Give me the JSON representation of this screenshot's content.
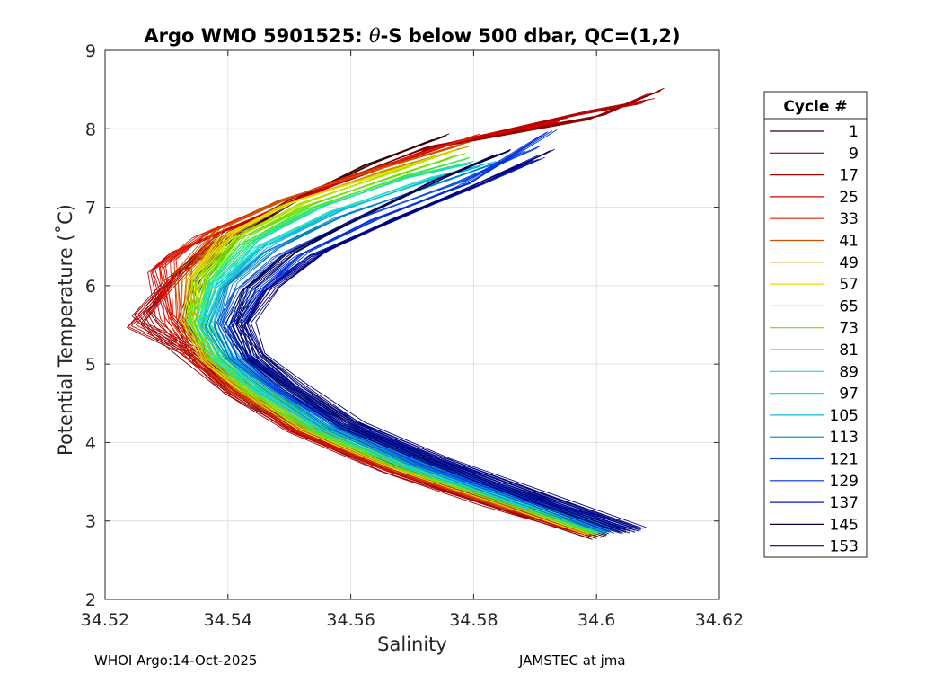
{
  "chart_data": {
    "type": "line",
    "title_prefix": "Argo WMO 5901525: ",
    "title_symbol": "θ",
    "title_suffix": "-S below 500 dbar,  QC=(1,2)",
    "xlabel": "Salinity",
    "ylabel": "Potential Temperature (˚C)",
    "xlim": [
      34.52,
      34.62
    ],
    "ylim": [
      2,
      9
    ],
    "xticks": [
      34.52,
      34.54,
      34.56,
      34.58,
      34.6,
      34.62
    ],
    "xtick_labels": [
      "34.52",
      "34.54",
      "34.56",
      "34.58",
      "34.6",
      "34.62"
    ],
    "yticks": [
      2,
      3,
      4,
      5,
      6,
      7,
      8,
      9
    ],
    "ytick_labels": [
      "2",
      "3",
      "4",
      "5",
      "6",
      "7",
      "8",
      "9"
    ],
    "grid": true,
    "legend_title": "Cycle #",
    "legend_position": "right-outside",
    "series": [
      {
        "name": "1",
        "color": "#3a0000",
        "points": [
          [
            34.601,
            2.8
          ],
          [
            34.585,
            3.2
          ],
          [
            34.568,
            3.65
          ],
          [
            34.553,
            4.15
          ],
          [
            34.542,
            4.65
          ],
          [
            34.536,
            5.05
          ],
          [
            34.533,
            5.55
          ],
          [
            34.535,
            6.05
          ],
          [
            34.541,
            6.6
          ],
          [
            34.551,
            7.1
          ],
          [
            34.563,
            7.55
          ],
          [
            34.575,
            7.9
          ]
        ]
      },
      {
        "name": "9",
        "color": "#8b0000",
        "points": [
          [
            34.6,
            2.82
          ],
          [
            34.584,
            3.22
          ],
          [
            34.567,
            3.66
          ],
          [
            34.552,
            4.16
          ],
          [
            34.541,
            4.66
          ],
          [
            34.534,
            5.1
          ],
          [
            34.528,
            5.45
          ],
          [
            34.526,
            5.65
          ],
          [
            34.531,
            6.1
          ],
          [
            34.539,
            6.6
          ],
          [
            34.552,
            7.15
          ],
          [
            34.572,
            7.75
          ],
          [
            34.6,
            8.15
          ],
          [
            34.61,
            8.48
          ]
        ]
      },
      {
        "name": "17",
        "color": "#b00000",
        "points": [
          [
            34.6,
            2.84
          ],
          [
            34.583,
            3.23
          ],
          [
            34.566,
            3.67
          ],
          [
            34.551,
            4.17
          ],
          [
            34.541,
            4.67
          ],
          [
            34.534,
            5.15
          ],
          [
            34.525,
            5.5
          ],
          [
            34.529,
            5.85
          ],
          [
            34.533,
            6.25
          ],
          [
            34.54,
            6.7
          ],
          [
            34.554,
            7.2
          ],
          [
            34.575,
            7.8
          ],
          [
            34.598,
            8.2
          ],
          [
            34.608,
            8.35
          ]
        ]
      },
      {
        "name": "25",
        "color": "#d00000",
        "points": [
          [
            34.6,
            2.85
          ],
          [
            34.584,
            3.24
          ],
          [
            34.567,
            3.68
          ],
          [
            34.552,
            4.18
          ],
          [
            34.541,
            4.68
          ],
          [
            34.535,
            5.12
          ],
          [
            34.53,
            5.6
          ],
          [
            34.528,
            6.2
          ],
          [
            34.532,
            6.45
          ],
          [
            34.541,
            6.75
          ],
          [
            34.556,
            7.25
          ],
          [
            34.578,
            7.85
          ],
          [
            34.594,
            8.1
          ]
        ]
      },
      {
        "name": "33",
        "color": "#e02000",
        "points": [
          [
            34.6,
            2.86
          ],
          [
            34.584,
            3.25
          ],
          [
            34.567,
            3.69
          ],
          [
            34.552,
            4.19
          ],
          [
            34.542,
            4.69
          ],
          [
            34.535,
            5.1
          ],
          [
            34.531,
            5.55
          ],
          [
            34.53,
            6.3
          ],
          [
            34.536,
            6.65
          ],
          [
            34.546,
            7.0
          ],
          [
            34.56,
            7.4
          ],
          [
            34.58,
            7.9
          ]
        ]
      },
      {
        "name": "41",
        "color": "#d05000",
        "points": [
          [
            34.6,
            2.85
          ],
          [
            34.585,
            3.24
          ],
          [
            34.568,
            3.69
          ],
          [
            34.553,
            4.18
          ],
          [
            34.542,
            4.68
          ],
          [
            34.536,
            5.12
          ],
          [
            34.533,
            5.6
          ],
          [
            34.533,
            6.2
          ],
          [
            34.538,
            6.7
          ],
          [
            34.549,
            7.1
          ],
          [
            34.563,
            7.45
          ],
          [
            34.578,
            7.8
          ]
        ]
      },
      {
        "name": "49",
        "color": "#c89000",
        "points": [
          [
            34.6,
            2.86
          ],
          [
            34.585,
            3.26
          ],
          [
            34.568,
            3.7
          ],
          [
            34.553,
            4.2
          ],
          [
            34.543,
            4.7
          ],
          [
            34.537,
            5.12
          ],
          [
            34.534,
            5.6
          ],
          [
            34.534,
            6.1
          ],
          [
            34.539,
            6.6
          ],
          [
            34.55,
            7.05
          ],
          [
            34.565,
            7.45
          ],
          [
            34.578,
            7.75
          ]
        ]
      },
      {
        "name": "57",
        "color": "#e8e000",
        "points": [
          [
            34.6,
            2.86
          ],
          [
            34.585,
            3.26
          ],
          [
            34.568,
            3.7
          ],
          [
            34.553,
            4.2
          ],
          [
            34.543,
            4.7
          ],
          [
            34.537,
            5.1
          ],
          [
            34.534,
            5.6
          ],
          [
            34.535,
            6.15
          ],
          [
            34.54,
            6.65
          ],
          [
            34.551,
            7.08
          ],
          [
            34.566,
            7.45
          ],
          [
            34.576,
            7.7
          ]
        ]
      },
      {
        "name": "65",
        "color": "#b0e000",
        "points": [
          [
            34.601,
            2.86
          ],
          [
            34.586,
            3.26
          ],
          [
            34.569,
            3.7
          ],
          [
            34.554,
            4.2
          ],
          [
            34.543,
            4.7
          ],
          [
            34.537,
            5.1
          ],
          [
            34.534,
            5.55
          ],
          [
            34.535,
            6.1
          ],
          [
            34.541,
            6.6
          ],
          [
            34.552,
            7.05
          ],
          [
            34.567,
            7.45
          ],
          [
            34.576,
            7.7
          ]
        ]
      },
      {
        "name": "73",
        "color": "#70e000",
        "points": [
          [
            34.601,
            2.87
          ],
          [
            34.586,
            3.27
          ],
          [
            34.569,
            3.71
          ],
          [
            34.554,
            4.21
          ],
          [
            34.544,
            4.71
          ],
          [
            34.538,
            5.1
          ],
          [
            34.535,
            5.6
          ],
          [
            34.536,
            6.1
          ],
          [
            34.542,
            6.6
          ],
          [
            34.553,
            7.02
          ],
          [
            34.568,
            7.42
          ],
          [
            34.577,
            7.65
          ]
        ]
      },
      {
        "name": "81",
        "color": "#40e840",
        "points": [
          [
            34.601,
            2.87
          ],
          [
            34.586,
            3.27
          ],
          [
            34.569,
            3.71
          ],
          [
            34.554,
            4.21
          ],
          [
            34.544,
            4.71
          ],
          [
            34.538,
            5.1
          ],
          [
            34.535,
            5.55
          ],
          [
            34.537,
            6.05
          ],
          [
            34.543,
            6.55
          ],
          [
            34.554,
            7.0
          ],
          [
            34.569,
            7.4
          ],
          [
            34.578,
            7.6
          ]
        ]
      },
      {
        "name": "89",
        "color": "#20e0a0",
        "points": [
          [
            34.602,
            2.88
          ],
          [
            34.587,
            3.28
          ],
          [
            34.57,
            3.72
          ],
          [
            34.555,
            4.22
          ],
          [
            34.545,
            4.72
          ],
          [
            34.539,
            5.1
          ],
          [
            34.536,
            5.55
          ],
          [
            34.538,
            6.05
          ],
          [
            34.544,
            6.55
          ],
          [
            34.555,
            7.0
          ],
          [
            34.57,
            7.4
          ],
          [
            34.579,
            7.55
          ]
        ]
      },
      {
        "name": "97",
        "color": "#20e0d0",
        "points": [
          [
            34.602,
            2.88
          ],
          [
            34.587,
            3.28
          ],
          [
            34.57,
            3.72
          ],
          [
            34.555,
            4.22
          ],
          [
            34.545,
            4.72
          ],
          [
            34.539,
            5.1
          ],
          [
            34.536,
            5.5
          ],
          [
            34.538,
            6.0
          ],
          [
            34.545,
            6.5
          ],
          [
            34.557,
            6.95
          ],
          [
            34.572,
            7.35
          ],
          [
            34.58,
            7.5
          ]
        ]
      },
      {
        "name": "105",
        "color": "#10b8d8",
        "points": [
          [
            34.602,
            2.88
          ],
          [
            34.587,
            3.28
          ],
          [
            34.57,
            3.73
          ],
          [
            34.556,
            4.22
          ],
          [
            34.546,
            4.72
          ],
          [
            34.54,
            5.1
          ],
          [
            34.537,
            5.5
          ],
          [
            34.539,
            6.0
          ],
          [
            34.546,
            6.5
          ],
          [
            34.558,
            6.95
          ],
          [
            34.573,
            7.35
          ],
          [
            34.582,
            7.55
          ]
        ]
      },
      {
        "name": "113",
        "color": "#0080c8",
        "points": [
          [
            34.603,
            2.88
          ],
          [
            34.588,
            3.28
          ],
          [
            34.571,
            3.74
          ],
          [
            34.557,
            4.22
          ],
          [
            34.547,
            4.72
          ],
          [
            34.541,
            5.1
          ],
          [
            34.538,
            5.5
          ],
          [
            34.54,
            6.0
          ],
          [
            34.547,
            6.45
          ],
          [
            34.559,
            6.9
          ],
          [
            34.574,
            7.3
          ],
          [
            34.585,
            7.6
          ]
        ]
      },
      {
        "name": "121",
        "color": "#1050e0",
        "points": [
          [
            34.603,
            2.88
          ],
          [
            34.589,
            3.28
          ],
          [
            34.572,
            3.75
          ],
          [
            34.558,
            4.22
          ],
          [
            34.548,
            4.72
          ],
          [
            34.542,
            5.1
          ],
          [
            34.539,
            5.5
          ],
          [
            34.542,
            5.95
          ],
          [
            34.549,
            6.4
          ],
          [
            34.561,
            6.85
          ],
          [
            34.577,
            7.3
          ],
          [
            34.59,
            7.75
          ]
        ]
      },
      {
        "name": "129",
        "color": "#0030e0",
        "points": [
          [
            34.604,
            2.88
          ],
          [
            34.59,
            3.28
          ],
          [
            34.573,
            3.76
          ],
          [
            34.559,
            4.22
          ],
          [
            34.549,
            4.72
          ],
          [
            34.543,
            5.1
          ],
          [
            34.541,
            5.5
          ],
          [
            34.545,
            5.95
          ],
          [
            34.552,
            6.4
          ],
          [
            34.564,
            6.85
          ],
          [
            34.579,
            7.3
          ],
          [
            34.592,
            7.95
          ]
        ]
      },
      {
        "name": "137",
        "color": "#0018b0",
        "points": [
          [
            34.605,
            2.88
          ],
          [
            34.591,
            3.28
          ],
          [
            34.574,
            3.76
          ],
          [
            34.56,
            4.22
          ],
          [
            34.55,
            4.72
          ],
          [
            34.544,
            5.1
          ],
          [
            34.542,
            5.5
          ],
          [
            34.546,
            5.95
          ],
          [
            34.554,
            6.4
          ],
          [
            34.566,
            6.8
          ],
          [
            34.58,
            7.25
          ],
          [
            34.59,
            7.6
          ]
        ]
      },
      {
        "name": "145",
        "color": "#000050",
        "points": [
          [
            34.606,
            2.88
          ],
          [
            34.591,
            3.28
          ],
          [
            34.574,
            3.76
          ],
          [
            34.56,
            4.22
          ],
          [
            34.55,
            4.72
          ],
          [
            34.544,
            5.1
          ],
          [
            34.541,
            5.5
          ],
          [
            34.543,
            5.95
          ],
          [
            34.55,
            6.4
          ],
          [
            34.561,
            6.85
          ],
          [
            34.574,
            7.35
          ],
          [
            34.585,
            7.7
          ]
        ]
      },
      {
        "name": "153",
        "color": "#000080",
        "points": [
          [
            34.607,
            2.88
          ],
          [
            34.592,
            3.28
          ],
          [
            34.575,
            3.76
          ],
          [
            34.561,
            4.22
          ],
          [
            34.551,
            4.72
          ],
          [
            34.545,
            5.1
          ],
          [
            34.543,
            5.5
          ],
          [
            34.547,
            5.95
          ],
          [
            34.555,
            6.4
          ],
          [
            34.567,
            6.85
          ],
          [
            34.581,
            7.3
          ],
          [
            34.592,
            7.7
          ]
        ]
      }
    ]
  },
  "footer": {
    "left": "WHOI Argo:14-Oct-2025",
    "right": "JAMSTEC at jma"
  }
}
